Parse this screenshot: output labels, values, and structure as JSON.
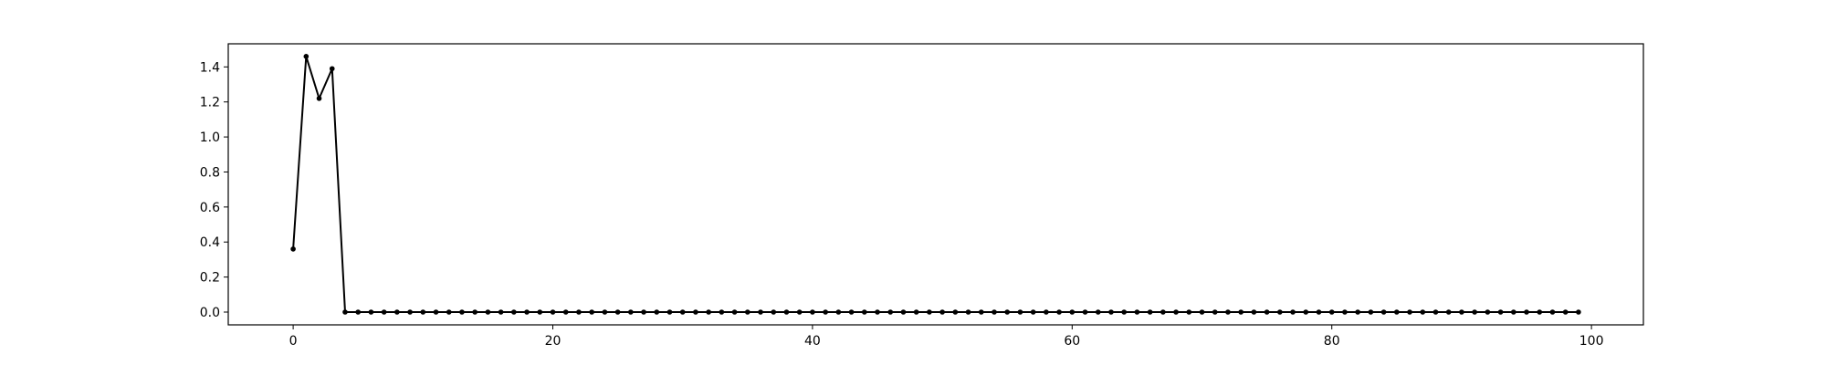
{
  "chart_data": {
    "type": "line",
    "title": "",
    "xlabel": "",
    "ylabel": "",
    "grid": false,
    "xlim": [
      -5,
      104
    ],
    "ylim": [
      -0.073,
      1.532
    ],
    "x_ticks": [
      0,
      20,
      40,
      60,
      80,
      100
    ],
    "x_tick_labels": [
      "0",
      "20",
      "40",
      "60",
      "80",
      "100"
    ],
    "y_ticks": [
      0.0,
      0.2,
      0.4,
      0.6,
      0.8,
      1.0,
      1.2,
      1.4
    ],
    "y_tick_labels": [
      "0.0",
      "0.2",
      "0.4",
      "0.6",
      "0.8",
      "1.0",
      "1.2",
      "1.4"
    ],
    "line_color": "#000000",
    "marker": "dot",
    "series": [
      {
        "x": [
          0,
          1,
          2,
          3,
          4,
          5,
          6,
          7,
          8,
          9,
          10,
          11,
          12,
          13,
          14,
          15,
          16,
          17,
          18,
          19,
          20,
          21,
          22,
          23,
          24,
          25,
          26,
          27,
          28,
          29,
          30,
          31,
          32,
          33,
          34,
          35,
          36,
          37,
          38,
          39,
          40,
          41,
          42,
          43,
          44,
          45,
          46,
          47,
          48,
          49,
          50,
          51,
          52,
          53,
          54,
          55,
          56,
          57,
          58,
          59,
          60,
          61,
          62,
          63,
          64,
          65,
          66,
          67,
          68,
          69,
          70,
          71,
          72,
          73,
          74,
          75,
          76,
          77,
          78,
          79,
          80,
          81,
          82,
          83,
          84,
          85,
          86,
          87,
          88,
          89,
          90,
          91,
          92,
          93,
          94,
          95,
          96,
          97,
          98,
          99
        ],
        "values": [
          0.36,
          1.46,
          1.22,
          1.39,
          0,
          0,
          0,
          0,
          0,
          0,
          0,
          0,
          0,
          0,
          0,
          0,
          0,
          0,
          0,
          0,
          0,
          0,
          0,
          0,
          0,
          0,
          0,
          0,
          0,
          0,
          0,
          0,
          0,
          0,
          0,
          0,
          0,
          0,
          0,
          0,
          0,
          0,
          0,
          0,
          0,
          0,
          0,
          0,
          0,
          0,
          0,
          0,
          0,
          0,
          0,
          0,
          0,
          0,
          0,
          0,
          0,
          0,
          0,
          0,
          0,
          0,
          0,
          0,
          0,
          0,
          0,
          0,
          0,
          0,
          0,
          0,
          0,
          0,
          0,
          0,
          0,
          0,
          0,
          0,
          0,
          0,
          0,
          0,
          0,
          0,
          0,
          0,
          0,
          0,
          0,
          0,
          0,
          0,
          0,
          0
        ]
      }
    ]
  }
}
